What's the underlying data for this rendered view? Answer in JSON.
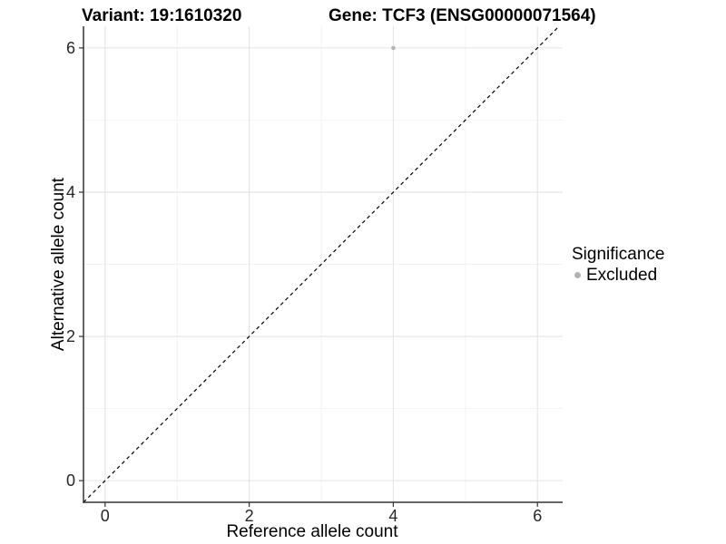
{
  "header": {
    "title_left": "Variant: 19:1610320",
    "title_right": "Gene: TCF3 (ENSG00000071564)"
  },
  "legend": {
    "title": "Significance",
    "entries": [
      {
        "label": "Excluded",
        "color": "#b3b3b3"
      }
    ]
  },
  "chart_data": {
    "type": "scatter",
    "title": "Variant: 19:1610320   Gene: TCF3 (ENSG00000071564)",
    "xlabel": "Reference allele count",
    "ylabel": "Alternative allele count",
    "xlim": [
      -0.3,
      6.35
    ],
    "ylim": [
      -0.3,
      6.3
    ],
    "xticks": [
      0,
      2,
      4,
      6
    ],
    "yticks": [
      0,
      2,
      4,
      6
    ],
    "minor_xticks": [
      1,
      3,
      5
    ],
    "minor_yticks": [
      1,
      3,
      5
    ],
    "grid": true,
    "legend_position": "right",
    "points": [
      {
        "x": 4,
        "y": 6,
        "series": "Excluded",
        "color": "#b3b3b3"
      }
    ],
    "reference_line": {
      "type": "identity",
      "style": "dashed",
      "color": "#000000",
      "from": [
        -0.3,
        -0.3
      ],
      "to": [
        6.3,
        6.3
      ]
    },
    "colors": {
      "grid_major": "#e4e4e4",
      "grid_minor": "#f2f2f2",
      "axis": "#333333",
      "tick_text": "#262626",
      "title_text": "#000000",
      "background": "#ffffff"
    }
  }
}
